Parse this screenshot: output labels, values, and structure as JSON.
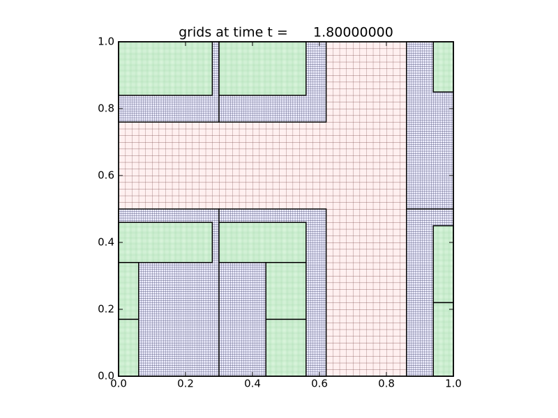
{
  "chart_data": {
    "type": "amr-grid",
    "title": "grids at time t =      1.80000000",
    "xlim": [
      0,
      1
    ],
    "ylim": [
      0,
      1
    ],
    "xticks": [
      {
        "value": 0,
        "label": "0.0"
      },
      0.2,
      0.4,
      0.6,
      0.8,
      {
        "value": 1,
        "label": "1.0"
      }
    ],
    "yticks": [
      {
        "value": 0,
        "label": "0.0"
      },
      0.2,
      0.4,
      0.6,
      0.8,
      {
        "value": 1,
        "label": "1.0"
      }
    ],
    "levels": [
      {
        "level": 1,
        "dx": 0.02,
        "fill": "#fff0f0",
        "line_color": "#7a4848"
      },
      {
        "level": 2,
        "dx": 0.006667,
        "fill": "#f0f0ff",
        "line_color": "#2a2a5a"
      },
      {
        "level": 3,
        "dx": 0.002222,
        "fill": "#f0fff0",
        "line_color": "#9fd8a8"
      }
    ],
    "patches": [
      {
        "level": 1,
        "x": [
          0,
          1
        ],
        "y": [
          0,
          1
        ]
      },
      {
        "level": 2,
        "x": [
          0,
          0.3
        ],
        "y": [
          0.76,
          1
        ]
      },
      {
        "level": 2,
        "x": [
          0.3,
          0.62
        ],
        "y": [
          0.76,
          1
        ]
      },
      {
        "level": 2,
        "x": [
          0,
          0.3
        ],
        "y": [
          0,
          0.5
        ]
      },
      {
        "level": 2,
        "x": [
          0.3,
          0.62
        ],
        "y": [
          0,
          0.5
        ]
      },
      {
        "level": 2,
        "x": [
          0.86,
          1
        ],
        "y": [
          0.5,
          1
        ]
      },
      {
        "level": 2,
        "x": [
          0.86,
          1
        ],
        "y": [
          0,
          0.5
        ]
      },
      {
        "level": 3,
        "x": [
          0,
          0.28
        ],
        "y": [
          0.84,
          1
        ]
      },
      {
        "level": 3,
        "x": [
          0.3,
          0.56
        ],
        "y": [
          0.84,
          1
        ]
      },
      {
        "level": 3,
        "x": [
          0,
          0.28
        ],
        "y": [
          0.34,
          0.46
        ]
      },
      {
        "level": 3,
        "x": [
          0.3,
          0.56
        ],
        "y": [
          0.34,
          0.46
        ]
      },
      {
        "level": 3,
        "x": [
          0,
          0.06
        ],
        "y": [
          0.17,
          0.34
        ]
      },
      {
        "level": 3,
        "x": [
          0,
          0.06
        ],
        "y": [
          0,
          0.17
        ]
      },
      {
        "level": 3,
        "x": [
          0.44,
          0.56
        ],
        "y": [
          0.17,
          0.34
        ]
      },
      {
        "level": 3,
        "x": [
          0.44,
          0.56
        ],
        "y": [
          0,
          0.17
        ]
      },
      {
        "level": 3,
        "x": [
          0.94,
          1
        ],
        "y": [
          0.85,
          1
        ]
      },
      {
        "level": 3,
        "x": [
          0.94,
          1
        ],
        "y": [
          0.22,
          0.45
        ]
      },
      {
        "level": 3,
        "x": [
          0.94,
          1
        ],
        "y": [
          0,
          0.22
        ]
      }
    ]
  }
}
